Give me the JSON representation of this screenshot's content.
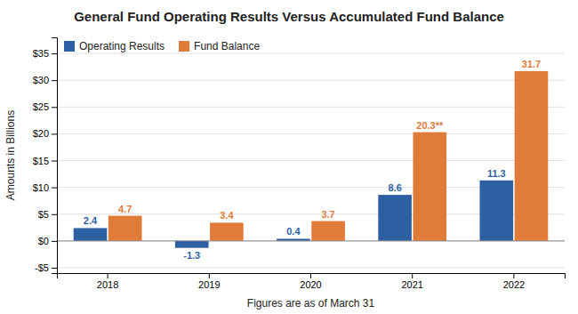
{
  "chart_data": {
    "type": "bar",
    "title": "General Fund Operating Results Versus Accumulated Fund Balance",
    "xlabel": "Figures are as of March 31",
    "ylabel": "Amounts in Billions",
    "categories": [
      "2018",
      "2019",
      "2020",
      "2021",
      "2022"
    ],
    "series": [
      {
        "name": "Operating Results",
        "color": "#2e5fa3",
        "values": [
          2.4,
          -1.3,
          0.4,
          8.6,
          11.3
        ]
      },
      {
        "name": "Fund Balance",
        "color": "#e07b39",
        "values": [
          4.7,
          3.4,
          3.7,
          20.3,
          31.7
        ],
        "value_labels": [
          "4.7",
          "3.4",
          "3.7",
          "20.3**",
          "31.7"
        ]
      }
    ],
    "ylim": [
      -6,
      38
    ],
    "yticks": [
      {
        "value": -5,
        "label": "-$5"
      },
      {
        "value": 0,
        "label": "$0"
      },
      {
        "value": 5,
        "label": "$5"
      },
      {
        "value": 10,
        "label": "$10"
      },
      {
        "value": 15,
        "label": "$15"
      },
      {
        "value": 20,
        "label": "$20"
      },
      {
        "value": 25,
        "label": "$25"
      },
      {
        "value": 30,
        "label": "$30"
      },
      {
        "value": 35,
        "label": "$35"
      }
    ],
    "grid": true,
    "legend": "top-left",
    "data_labels": true
  }
}
